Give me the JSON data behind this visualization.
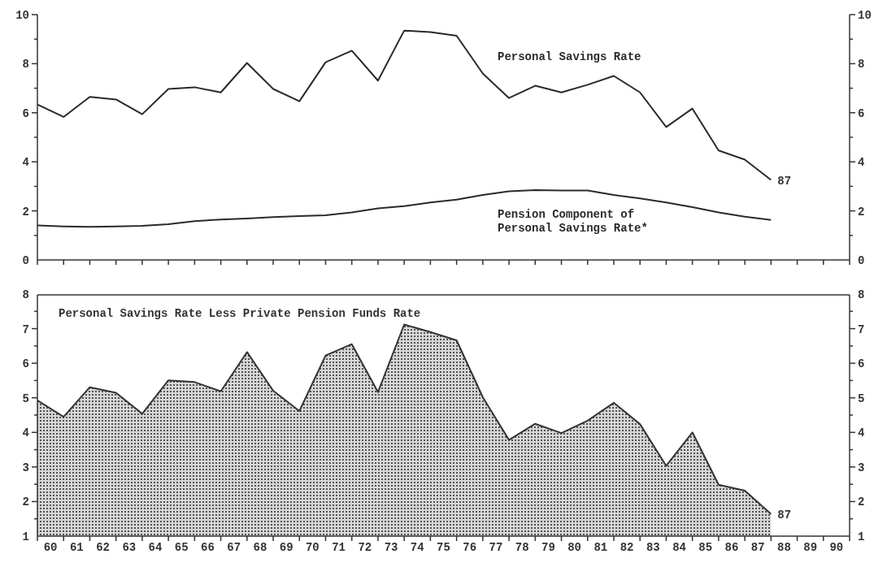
{
  "chart_data": [
    {
      "type": "line",
      "x": [
        59.5,
        60.5,
        61.5,
        62.5,
        63.5,
        64.5,
        65.5,
        66.5,
        67.5,
        68.5,
        69.5,
        70.5,
        71.5,
        72.5,
        73.5,
        74.5,
        75.5,
        76.5,
        77.5,
        78.5,
        79.5,
        80.5,
        81.5,
        82.5,
        83.5,
        84.5,
        85.5,
        86.5,
        87.5
      ],
      "series": [
        {
          "name": "Personal Savings Rate",
          "color": "#2a2a2a",
          "values": [
            6.34,
            5.83,
            6.65,
            6.54,
            5.94,
            6.97,
            7.04,
            6.83,
            8.03,
            6.97,
            6.47,
            8.06,
            8.53,
            7.31,
            9.35,
            9.29,
            9.14,
            7.6,
            6.6,
            7.1,
            6.83,
            7.14,
            7.5,
            6.83,
            5.42,
            6.17,
            4.46,
            4.09,
            3.26
          ]
        },
        {
          "name": "Pension Component of Personal Savings Rate*",
          "color": "#2a2a2a",
          "values": [
            1.41,
            1.37,
            1.35,
            1.37,
            1.39,
            1.46,
            1.58,
            1.65,
            1.69,
            1.75,
            1.79,
            1.82,
            1.94,
            2.1,
            2.19,
            2.34,
            2.46,
            2.65,
            2.8,
            2.85,
            2.83,
            2.83,
            2.65,
            2.51,
            2.34,
            2.15,
            1.94,
            1.76,
            1.63
          ]
        }
      ],
      "xlim": [
        59.5,
        90.5
      ],
      "xticks": [
        {
          "value": 59.5,
          "label": null
        },
        60,
        {
          "value": 60.5,
          "label": null
        },
        61,
        {
          "value": 61.5,
          "label": null
        },
        62,
        {
          "value": 62.5,
          "label": null
        },
        63,
        {
          "value": 63.5,
          "label": null
        },
        64,
        {
          "value": 64.5,
          "label": null
        },
        65,
        {
          "value": 65.5,
          "label": null
        },
        66,
        {
          "value": 66.5,
          "label": null
        },
        67,
        {
          "value": 67.5,
          "label": null
        },
        68,
        {
          "value": 68.5,
          "label": null
        },
        69,
        {
          "value": 69.5,
          "label": null
        },
        70,
        {
          "value": 70.5,
          "label": null
        },
        71,
        {
          "value": 71.5,
          "label": null
        },
        72,
        {
          "value": 72.5,
          "label": null
        },
        73,
        {
          "value": 73.5,
          "label": null
        },
        74,
        {
          "value": 74.5,
          "label": null
        },
        75,
        {
          "value": 75.5,
          "label": null
        },
        76,
        {
          "value": 76.5,
          "label": null
        },
        77,
        {
          "value": 77.5,
          "label": null
        },
        78,
        {
          "value": 78.5,
          "label": null
        },
        79,
        {
          "value": 79.5,
          "label": null
        },
        80,
        {
          "value": 80.5,
          "label": null
        },
        81,
        {
          "value": 81.5,
          "label": null
        },
        82,
        {
          "value": 82.5,
          "label": null
        },
        83,
        {
          "value": 83.5,
          "label": null
        },
        84,
        {
          "value": 84.5,
          "label": null
        },
        85,
        {
          "value": 85.5,
          "label": null
        },
        86,
        {
          "value": 86.5,
          "label": null
        },
        87,
        {
          "value": 87.5,
          "label": null
        },
        88,
        {
          "value": 88.5,
          "label": null
        },
        89,
        {
          "value": 89.5,
          "label": null
        },
        90,
        {
          "value": 90.5,
          "label": null
        }
      ],
      "ylim": [
        0,
        10
      ],
      "yticks": [
        0,
        {
          "value": 1,
          "label": null
        },
        2,
        {
          "value": 3,
          "label": null
        },
        4,
        {
          "value": 5,
          "label": null
        },
        6,
        {
          "value": 7,
          "label": null
        },
        8,
        {
          "value": 9,
          "label": null
        },
        10
      ],
      "y2lim": [
        0,
        10
      ],
      "y2ticks": [
        0,
        {
          "value": 1,
          "label": null
        },
        2,
        {
          "value": 3,
          "label": null
        },
        4,
        {
          "value": 5,
          "label": null
        },
        6,
        {
          "value": 7,
          "label": null
        },
        8,
        {
          "value": 9,
          "label": null
        },
        10
      ],
      "tick_labels": "y",
      "grid": false,
      "legend": false,
      "marker": "none",
      "line_style": "solid",
      "annotations": [
        {
          "text": "87",
          "x": 87.5,
          "y": 3.26
        }
      ]
    },
    {
      "type": "area",
      "x": [
        59.5,
        60.5,
        61.5,
        62.5,
        63.5,
        64.5,
        65.5,
        66.5,
        67.5,
        68.5,
        69.5,
        70.5,
        71.5,
        72.5,
        73.5,
        74.5,
        75.5,
        76.5,
        77.5,
        78.5,
        79.5,
        80.5,
        81.5,
        82.5,
        83.5,
        84.5,
        85.5,
        86.5,
        87.5
      ],
      "series": [
        {
          "name": "Personal Savings Rate Less Private Pension Funds Rate",
          "color": "#333333",
          "values": [
            4.94,
            4.46,
            5.32,
            5.16,
            4.55,
            5.52,
            5.47,
            5.2,
            6.34,
            5.22,
            4.63,
            6.24,
            6.57,
            5.18,
            7.14,
            6.92,
            6.68,
            5.03,
            3.79,
            4.26,
            3.99,
            4.35,
            4.87,
            4.25,
            3.04,
            4.01,
            2.49,
            2.32,
            1.64
          ]
        }
      ],
      "xlim": [
        59.5,
        90.5
      ],
      "xticks": [
        {
          "value": 59.5,
          "label": null
        },
        60,
        {
          "value": 60.5,
          "label": null
        },
        61,
        {
          "value": 61.5,
          "label": null
        },
        62,
        {
          "value": 62.5,
          "label": null
        },
        63,
        {
          "value": 63.5,
          "label": null
        },
        64,
        {
          "value": 64.5,
          "label": null
        },
        65,
        {
          "value": 65.5,
          "label": null
        },
        66,
        {
          "value": 66.5,
          "label": null
        },
        67,
        {
          "value": 67.5,
          "label": null
        },
        68,
        {
          "value": 68.5,
          "label": null
        },
        69,
        {
          "value": 69.5,
          "label": null
        },
        70,
        {
          "value": 70.5,
          "label": null
        },
        71,
        {
          "value": 71.5,
          "label": null
        },
        72,
        {
          "value": 72.5,
          "label": null
        },
        73,
        {
          "value": 73.5,
          "label": null
        },
        74,
        {
          "value": 74.5,
          "label": null
        },
        75,
        {
          "value": 75.5,
          "label": null
        },
        76,
        {
          "value": 76.5,
          "label": null
        },
        77,
        {
          "value": 77.5,
          "label": null
        },
        78,
        {
          "value": 78.5,
          "label": null
        },
        79,
        {
          "value": 79.5,
          "label": null
        },
        80,
        {
          "value": 80.5,
          "label": null
        },
        81,
        {
          "value": 81.5,
          "label": null
        },
        82,
        {
          "value": 82.5,
          "label": null
        },
        83,
        {
          "value": 83.5,
          "label": null
        },
        84,
        {
          "value": 84.5,
          "label": null
        },
        85,
        {
          "value": 85.5,
          "label": null
        },
        86,
        {
          "value": 86.5,
          "label": null
        },
        87,
        {
          "value": 87.5,
          "label": null
        },
        88,
        {
          "value": 88.5,
          "label": null
        },
        89,
        {
          "value": 89.5,
          "label": null
        },
        90,
        {
          "value": 90.5,
          "label": null
        }
      ],
      "ylim": [
        1,
        8
      ],
      "yticks": [
        1,
        {
          "value": 1.5,
          "label": null
        },
        2,
        {
          "value": 2.5,
          "label": null
        },
        3,
        {
          "value": 3.5,
          "label": null
        },
        4,
        {
          "value": 4.5,
          "label": null
        },
        5,
        {
          "value": 5.5,
          "label": null
        },
        6,
        {
          "value": 6.5,
          "label": null
        },
        7,
        {
          "value": 7.5,
          "label": null
        },
        8
      ],
      "y2lim": [
        1,
        8
      ],
      "y2ticks": [
        1,
        {
          "value": 1.5,
          "label": null
        },
        2,
        {
          "value": 2.5,
          "label": null
        },
        3,
        {
          "value": 3.5,
          "label": null
        },
        4,
        {
          "value": 4.5,
          "label": null
        },
        5,
        {
          "value": 5.5,
          "label": null
        },
        6,
        {
          "value": 6.5,
          "label": null
        },
        7,
        {
          "value": 7.5,
          "label": null
        },
        8
      ],
      "grid": false,
      "legend": false,
      "marker": "none",
      "line_style": "solid",
      "annotations": [
        {
          "text": "87",
          "x": 87.5,
          "y": 1.64
        }
      ]
    }
  ]
}
